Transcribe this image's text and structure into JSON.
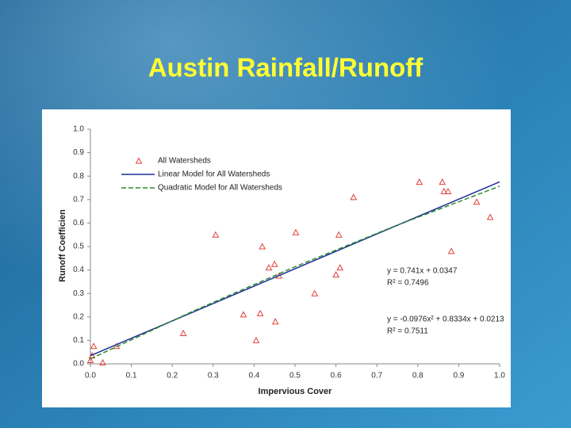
{
  "chart_data": {
    "type": "scatter",
    "title": "Austin Rainfall/Runoff",
    "x_label": "Impervious Cover",
    "y_label": "Runoff Coefficien",
    "xlim": [
      0,
      1
    ],
    "ylim": [
      0,
      1
    ],
    "xticks": [
      {
        "value": 0,
        "label": "0.0"
      },
      0.1,
      0.2,
      0.3,
      0.4,
      0.5,
      0.6,
      0.7,
      0.8,
      0.9,
      {
        "value": 1,
        "label": "1.0"
      }
    ],
    "yticks": [
      {
        "value": 0,
        "label": "0.0"
      },
      0.1,
      0.2,
      0.3,
      0.4,
      0.5,
      0.6,
      0.7,
      0.8,
      0.9,
      {
        "value": 1,
        "label": "1.0"
      }
    ],
    "series": [
      {
        "name": "All Watersheds",
        "color": "#e0403a",
        "marker": "triangle",
        "x": [
          0.008,
          0.0,
          0.004,
          0.03,
          0.064,
          0.227,
          0.306,
          0.374,
          0.415,
          0.405,
          0.42,
          0.436,
          0.45,
          0.452,
          0.461,
          0.502,
          0.548,
          0.6,
          0.607,
          0.61,
          0.643,
          0.804,
          0.86,
          0.864,
          0.874,
          0.882,
          0.944,
          0.977
        ],
        "values": [
          0.075,
          0.015,
          0.035,
          0.005,
          0.075,
          0.13,
          0.55,
          0.21,
          0.215,
          0.1,
          0.5,
          0.41,
          0.425,
          0.18,
          0.375,
          0.56,
          0.3,
          0.38,
          0.55,
          0.41,
          0.71,
          0.775,
          0.775,
          0.735,
          0.735,
          0.48,
          0.69,
          0.625
        ]
      },
      {
        "name": "Linear Model for All Watersheds",
        "color": "#1f2f9a",
        "linestyle": "solid",
        "x": [
          0,
          1
        ],
        "values": [
          0.0347,
          0.7757
        ]
      },
      {
        "name": "Quadratic Model for All Watersheds",
        "color": "#2e8b2e",
        "linestyle": "dashed",
        "x": [
          0,
          0.25,
          0.5,
          0.75,
          1
        ],
        "values": [
          0.0213,
          0.2236,
          0.4136,
          0.5914,
          0.7571
        ]
      }
    ],
    "annotations": [
      "y = 0.741x + 0.0347",
      "R² = 0.7496",
      "y = -0.0976x² + 0.8334x + 0.0213",
      "R² = 0.7511"
    ]
  }
}
